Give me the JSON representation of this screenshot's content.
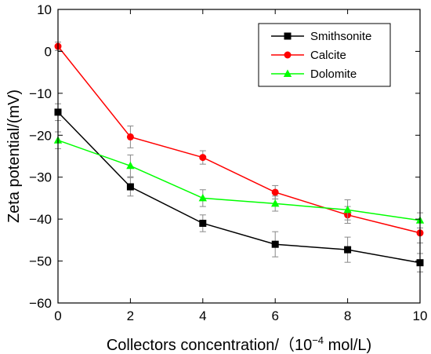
{
  "chart_data": {
    "type": "line",
    "x": [
      0,
      2,
      4,
      6,
      8,
      10
    ],
    "series": [
      {
        "name": "Smithsonite",
        "color": "#000000",
        "marker": "square",
        "values": [
          -14.5,
          -32.3,
          -41.0,
          -46.0,
          -47.3,
          -50.4
        ],
        "errors": [
          2.0,
          2.2,
          2.0,
          3.0,
          3.0,
          2.2
        ]
      },
      {
        "name": "Calcite",
        "color": "#ff0000",
        "marker": "circle",
        "values": [
          1.2,
          -20.4,
          -25.3,
          -33.6,
          -39.0,
          -43.3
        ],
        "errors": [
          1.0,
          2.6,
          1.6,
          1.6,
          2.0,
          2.4
        ]
      },
      {
        "name": "Dolomite",
        "color": "#00ff00",
        "marker": "triangle",
        "values": [
          -21.2,
          -27.3,
          -35.0,
          -36.3,
          -37.8,
          -40.3
        ],
        "errors": [
          2.0,
          2.6,
          2.0,
          1.8,
          2.4,
          1.8
        ]
      }
    ],
    "xlabel_prefix": "Collectors concentration/（10",
    "xlabel_sup": "−4",
    "xlabel_suffix": " mol/L)",
    "ylabel": "Zeta potential/(mV)",
    "xlim": [
      0,
      10
    ],
    "ylim": [
      -60,
      10
    ],
    "xticks": [
      0,
      2,
      4,
      6,
      8,
      10
    ],
    "yticks": [
      10,
      0,
      -10,
      -20,
      -30,
      -40,
      -50,
      -60
    ],
    "grid": false,
    "legend_position": "top-right"
  }
}
